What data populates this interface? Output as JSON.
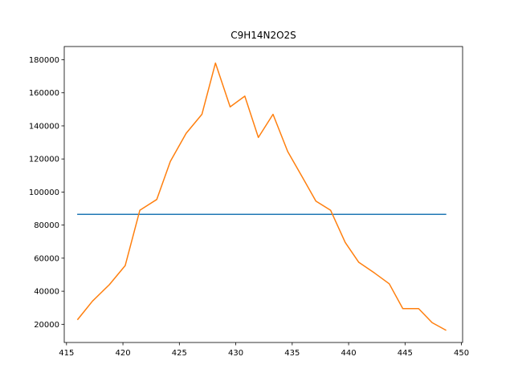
{
  "chart_data": {
    "type": "line",
    "title": "C9H14N2O2S",
    "xlabel": "",
    "ylabel": "",
    "xlim": [
      414.8,
      450.1
    ],
    "ylim": [
      9000,
      188000
    ],
    "xticks": [
      415,
      420,
      425,
      430,
      435,
      440,
      445,
      450
    ],
    "yticks": [
      20000,
      40000,
      60000,
      80000,
      100000,
      120000,
      140000,
      160000,
      180000
    ],
    "grid": false,
    "series": [
      {
        "color": "#1f77b4",
        "x": [
          416.0,
          448.6
        ],
        "y": [
          86500,
          86500
        ]
      },
      {
        "color": "#ff7f0e",
        "x": [
          416.0,
          417.3,
          418.8,
          420.2,
          421.5,
          423.0,
          424.2,
          425.6,
          427.0,
          428.2,
          429.5,
          430.8,
          432.0,
          433.3,
          434.6,
          435.9,
          437.1,
          438.4,
          439.7,
          440.9,
          442.3,
          443.6,
          444.8,
          446.2,
          447.4,
          448.6
        ],
        "y": [
          23000,
          34000,
          44000,
          55500,
          89000,
          95500,
          118500,
          135500,
          147000,
          178000,
          151500,
          158000,
          133000,
          147000,
          124500,
          109000,
          94500,
          89000,
          69500,
          57500,
          51000,
          44500,
          29500,
          29500,
          21000,
          16500
        ]
      }
    ]
  }
}
